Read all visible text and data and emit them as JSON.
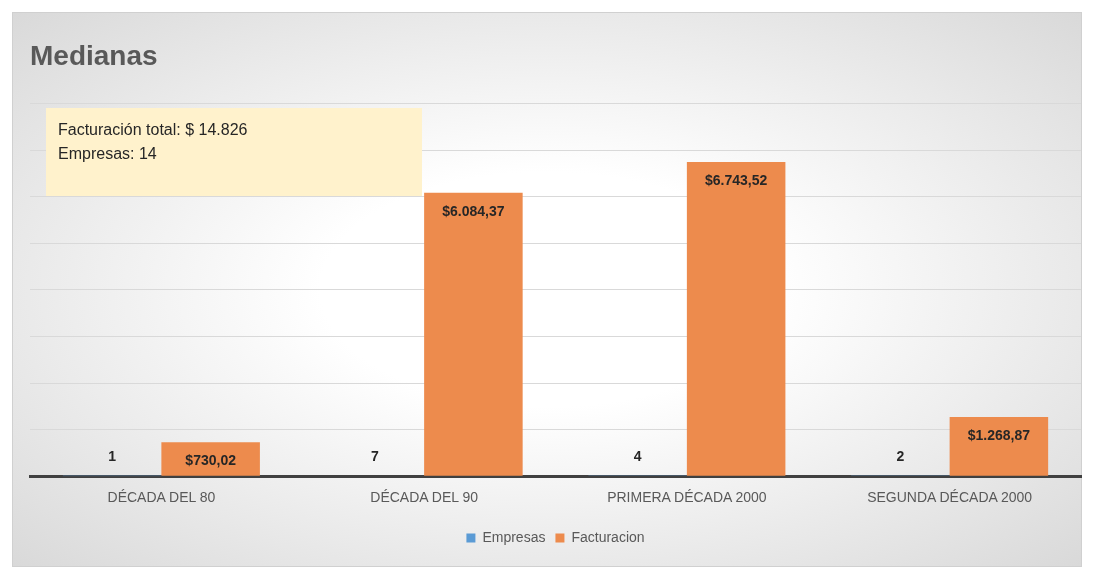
{
  "chart_data": {
    "type": "bar",
    "title": "Medianas",
    "categories": [
      "DÉCADA DEL 80",
      "DÉCADA DEL 90",
      "PRIMERA DÉCADA 2000",
      "SEGUNDA DÉCADA 2000"
    ],
    "series": [
      {
        "name": "Empresas",
        "color": "#5b9bd5",
        "values": [
          1,
          7,
          4,
          2
        ],
        "value_labels": [
          "1",
          "7",
          "4",
          "2"
        ]
      },
      {
        "name": "Facturacion",
        "color": "#ed8b4d",
        "values": [
          730.02,
          6084.37,
          6743.52,
          1268.87
        ],
        "value_labels": [
          "$730,02",
          "$6.084,37",
          "$6.743,52",
          "$1.268,87"
        ]
      }
    ],
    "ylim": [
      0,
      8000
    ],
    "yticks": [
      {
        "value": 0,
        "label": null
      },
      {
        "value": 1000,
        "label": null
      },
      {
        "value": 2000,
        "label": null
      },
      {
        "value": 3000,
        "label": null
      },
      {
        "value": 4000,
        "label": null
      },
      {
        "value": 5000,
        "label": null
      },
      {
        "value": 6000,
        "label": null
      },
      {
        "value": 7000,
        "label": null
      },
      {
        "value": 8000,
        "label": null
      }
    ],
    "tick_labels": "x",
    "grid": "y",
    "legend": "bottom",
    "annotations": [
      "Facturación total: $ 14.826",
      "Empresas: 14"
    ]
  }
}
